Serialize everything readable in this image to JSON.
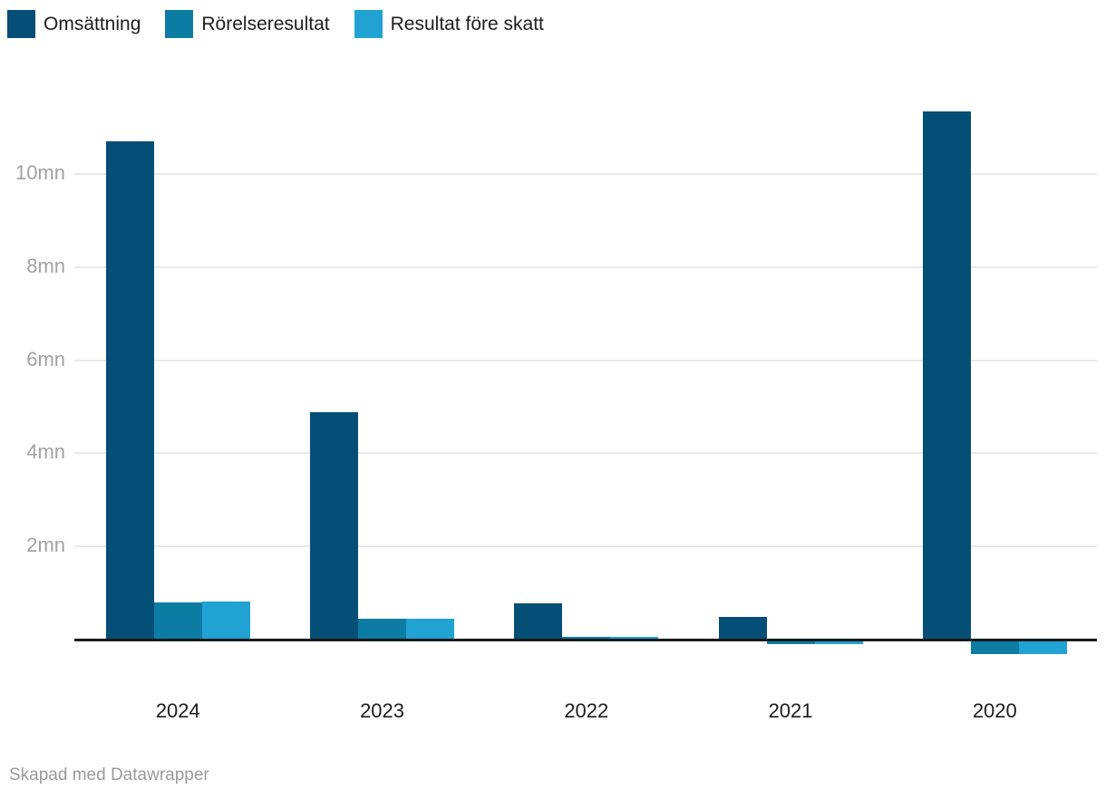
{
  "chart_data": {
    "type": "bar",
    "categories": [
      "2024",
      "2023",
      "2022",
      "2021",
      "2020"
    ],
    "series": [
      {
        "name": "Omsättning",
        "color": "#054f77",
        "values": [
          10.7,
          4.89,
          0.78,
          0.48,
          11.35
        ]
      },
      {
        "name": "Rörelseresultat",
        "color": "#0d7ca3",
        "values": [
          0.8,
          0.44,
          0.06,
          -0.09,
          -0.32
        ]
      },
      {
        "name": "Resultat före skatt",
        "color": "#20a2d3",
        "values": [
          0.82,
          0.44,
          0.05,
          -0.09,
          -0.32
        ]
      }
    ],
    "title": "",
    "xlabel": "",
    "ylabel": "",
    "y_ticks": [
      2,
      4,
      6,
      8,
      10
    ],
    "y_tick_suffix": "mn",
    "ylim": [
      -0.5,
      11.5
    ],
    "grid": true,
    "legend_position": "top-left",
    "baseline_color": "#191919",
    "gridline_color": "#e9e9e9",
    "axis_text_color": "#a2a2a2",
    "label_text_color": "#1c1c1c"
  },
  "footer": {
    "credit": "Skapad med Datawrapper"
  }
}
